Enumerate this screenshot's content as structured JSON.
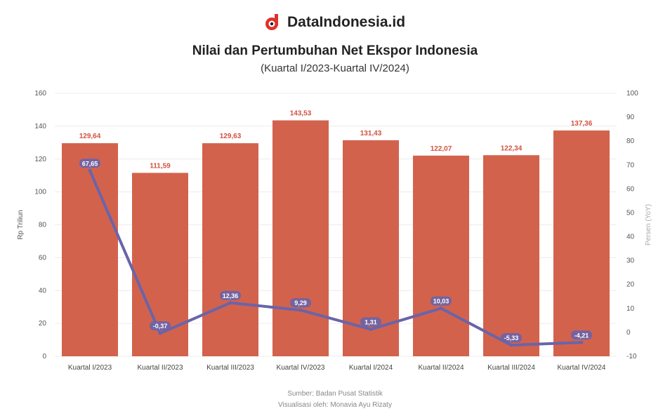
{
  "brand": {
    "name": "DataIndonesia.id",
    "logo_icon": "dataindonesia-logo-icon",
    "logo_color": "#e0312b"
  },
  "title": "Nilai dan Pertumbuhan Net Ekspor Indonesia",
  "subtitle": "(Kuartal I/2023-Kuartal IV/2024)",
  "footer": {
    "source": "Sumber: Badan Pusat Statistik",
    "credit": "Visualisasi oleh: Monavia Ayu Rizaty"
  },
  "colors": {
    "bar": "#d3624d",
    "line": "#6a64a8",
    "bar_label": "#d3513e"
  },
  "chart_data": {
    "type": "bar",
    "categories": [
      "Kuartal I/2023",
      "Kuartal II/2023",
      "Kuartal III/2023",
      "Kuartal IV/2023",
      "Kuartal I/2024",
      "Kuartal II/2024",
      "Kuartal III/2024",
      "Kuartal IV/2024"
    ],
    "series": [
      {
        "type": "bar",
        "axis": "left",
        "values": [
          129.64,
          111.59,
          129.63,
          143.53,
          131.43,
          122.07,
          122.34,
          137.36
        ],
        "labels": [
          "129,64",
          "111,59",
          "129,63",
          "143,53",
          "131,43",
          "122,07",
          "122,34",
          "137,36"
        ]
      },
      {
        "type": "line",
        "axis": "right",
        "values": [
          67.65,
          -0.37,
          12.36,
          9.29,
          1.31,
          10.03,
          -5.33,
          -4.21
        ],
        "labels": [
          "67,65",
          "-0,37",
          "12,36",
          "9,29",
          "1,31",
          "10,03",
          "-5,33",
          "-4,21"
        ]
      }
    ],
    "ylabel": "Rp Triliun",
    "y2label": "Persen (YoY)",
    "ylim": [
      0,
      160
    ],
    "y2lim": [
      -10,
      100
    ],
    "yticks": [
      0,
      20,
      40,
      60,
      80,
      100,
      120,
      140,
      160
    ],
    "y2ticks": [
      -10,
      0,
      10,
      20,
      30,
      40,
      50,
      60,
      70,
      80,
      90,
      100
    ],
    "grid": true,
    "legend": "none"
  }
}
